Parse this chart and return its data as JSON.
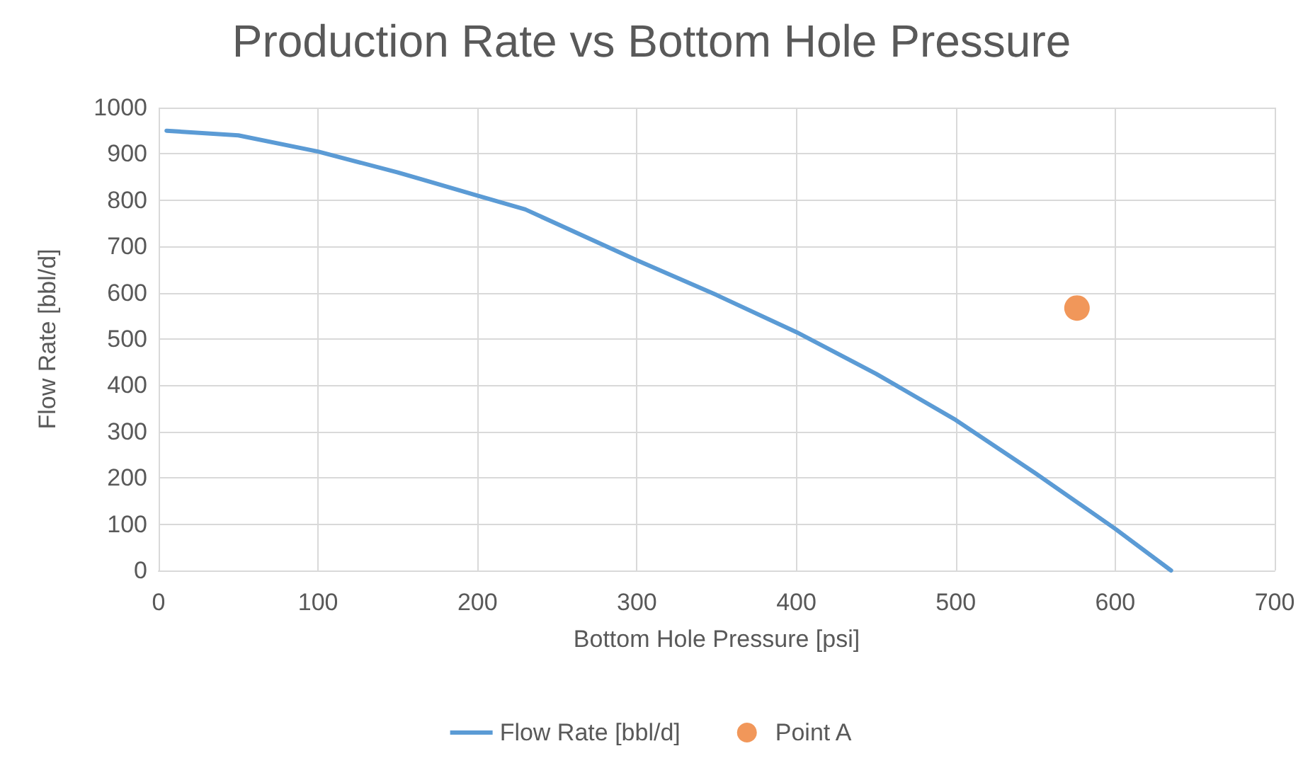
{
  "chart_data": {
    "type": "line",
    "title": "Production Rate vs Bottom Hole Pressure",
    "xlabel": "Bottom Hole Pressure [psi]",
    "ylabel": "Flow Rate [bbl/d]",
    "series": [
      {
        "name": "Flow Rate [bbl/d]",
        "color": "#5b9bd5",
        "x": [
          5,
          50,
          100,
          150,
          200,
          230,
          300,
          350,
          400,
          450,
          500,
          550,
          600,
          635
        ],
        "values": [
          950,
          940,
          905,
          860,
          810,
          780,
          670,
          595,
          515,
          425,
          325,
          210,
          90,
          0
        ]
      },
      {
        "name": "Point A",
        "type": "scatter",
        "color": "#ed7d31",
        "x": [
          576
        ],
        "values": [
          567
        ],
        "marker": "circle"
      }
    ],
    "xlim": [
      0,
      700
    ],
    "xticks": [
      0,
      100,
      200,
      300,
      400,
      500,
      600,
      700
    ],
    "ylim": [
      0,
      1000
    ],
    "yticks": [
      0,
      100,
      200,
      300,
      400,
      500,
      600,
      700,
      800,
      900,
      1000
    ],
    "grid": true,
    "legend": "bottom",
    "marker": "none"
  }
}
